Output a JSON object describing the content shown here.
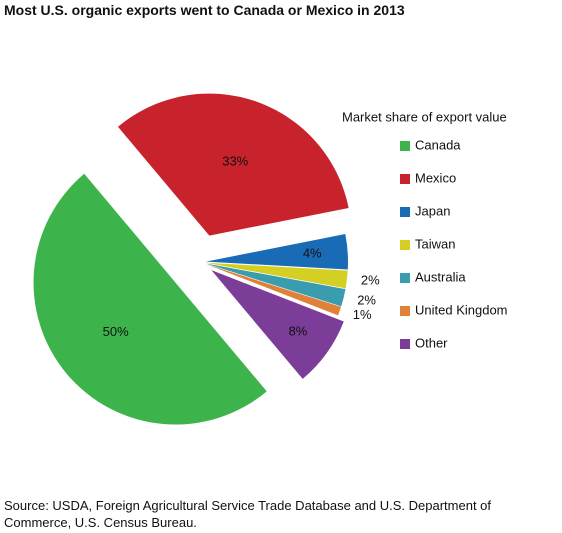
{
  "chart_data": {
    "type": "pie",
    "title": "Most U.S. organic exports went to Canada or Mexico in 2013",
    "legend_title": "Market share of export value",
    "categories": [
      "Canada",
      "Mexico",
      "Japan",
      "Taiwan",
      "Australia",
      "United Kingdom",
      "Other"
    ],
    "values": [
      50,
      33,
      4,
      2,
      2,
      1,
      8
    ],
    "value_labels": [
      "50%",
      "33%",
      "4%",
      "2%",
      "2%",
      "1%",
      "8%"
    ],
    "colors": [
      "#3cb44b",
      "#c8232c",
      "#1a6bb5",
      "#d4cf23",
      "#3a9daf",
      "#e0813a",
      "#7b3d98"
    ],
    "legend": "right",
    "source": "Source: USDA, Foreign Agricultural Service Trade Database and U.S. Department of Commerce, U.S. Census Bureau."
  }
}
